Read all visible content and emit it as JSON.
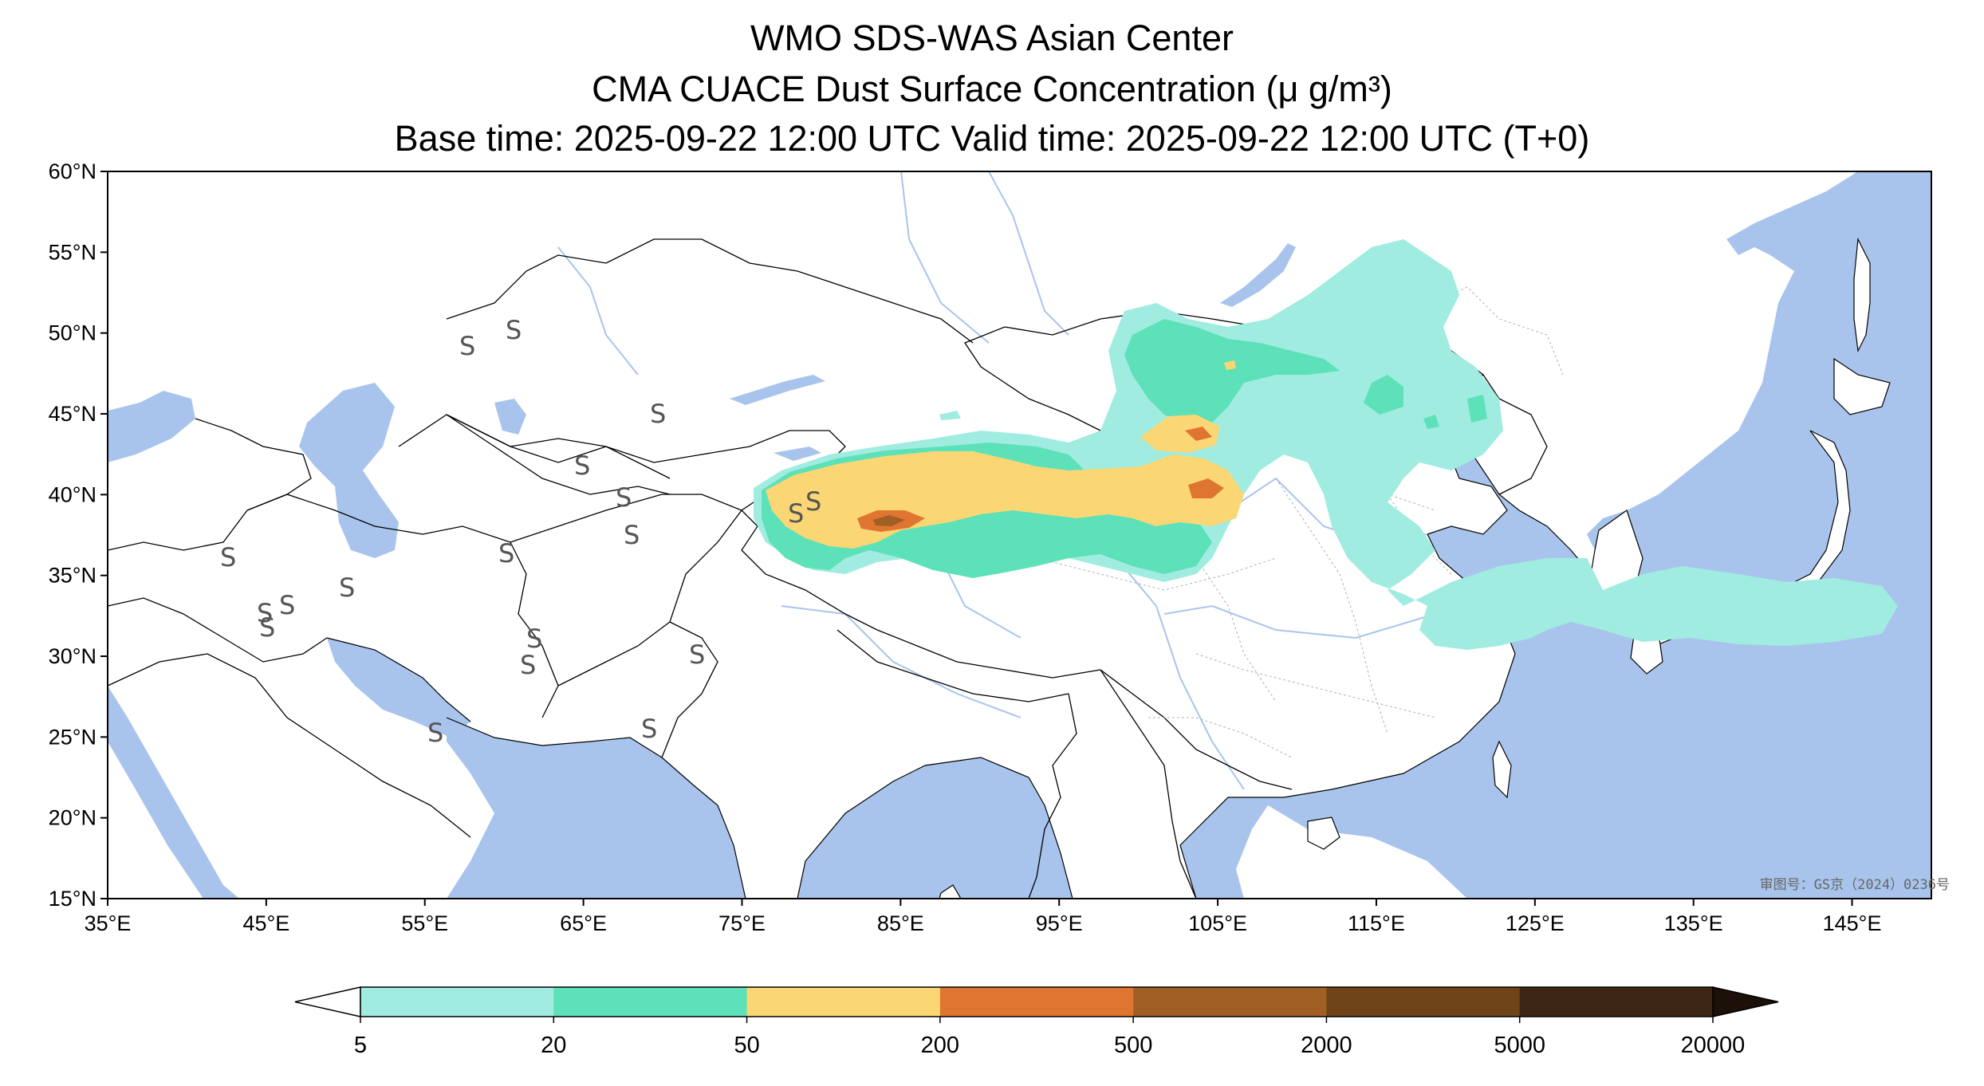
{
  "header": {
    "title_line1": "WMO SDS-WAS Asian Center",
    "title_line2": "CMA CUACE Dust Surface Concentration (μ g/m³)",
    "title_line3": "Base time: 2025-09-22 12:00 UTC Valid time: 2025-09-22 12:00 UTC (T+0)"
  },
  "map": {
    "extent": {
      "lon_min": 35,
      "lon_max": 150,
      "lat_min": 15,
      "lat_max": 60
    },
    "lat_ticks": [
      {
        "value": 60,
        "label": "60°N"
      },
      {
        "value": 55,
        "label": "55°N"
      },
      {
        "value": 50,
        "label": "50°N"
      },
      {
        "value": 45,
        "label": "45°N"
      },
      {
        "value": 40,
        "label": "40°N"
      },
      {
        "value": 35,
        "label": "35°N"
      },
      {
        "value": 30,
        "label": "30°N"
      },
      {
        "value": 25,
        "label": "25°N"
      },
      {
        "value": 20,
        "label": "20°N"
      },
      {
        "value": 15,
        "label": "15°N"
      }
    ],
    "lon_ticks": [
      {
        "value": 35,
        "label": "35°E"
      },
      {
        "value": 45,
        "label": "45°E"
      },
      {
        "value": 55,
        "label": "55°E"
      },
      {
        "value": 65,
        "label": "65°E"
      },
      {
        "value": 75,
        "label": "75°E"
      },
      {
        "value": 85,
        "label": "85°E"
      },
      {
        "value": 95,
        "label": "95°E"
      },
      {
        "value": 105,
        "label": "105°E"
      },
      {
        "value": 115,
        "label": "115°E"
      },
      {
        "value": 125,
        "label": "125°E"
      },
      {
        "value": 135,
        "label": "135°E"
      },
      {
        "value": 145,
        "label": "145°E"
      }
    ],
    "approval_number": "审图号：GS京（2024）0236号",
    "colors": {
      "ocean": "#a9c4ec",
      "land": "#ffffff",
      "border": "#000000",
      "river": "#a9c4ec"
    }
  },
  "colorbar": {
    "levels": [
      "5",
      "20",
      "50",
      "200",
      "500",
      "2000",
      "5000",
      "20000"
    ],
    "colors": [
      "#a0ece0",
      "#5de1b8",
      "#fad774",
      "#df7530",
      "#a05f24",
      "#6f4418",
      "#3d2614"
    ],
    "under_color": "#ffffff",
    "over_color": "#1c1008"
  },
  "dust": {
    "colors": {
      "level_5": "#a0ece0",
      "level_20": "#5de1b8",
      "level_50": "#fad774",
      "level_200": "#df7530",
      "level_500": "#a05f24"
    }
  },
  "station_symbol": "S"
}
